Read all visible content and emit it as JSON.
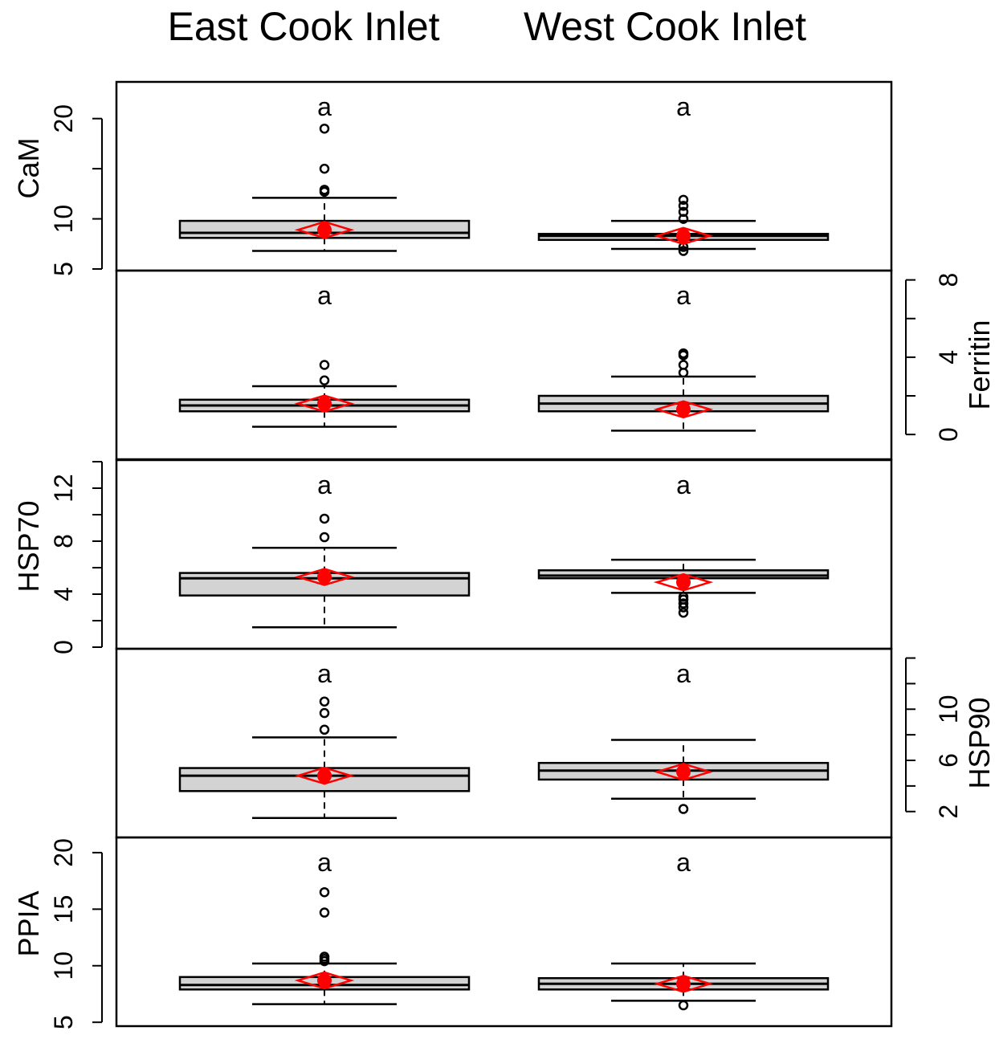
{
  "chart_data": {
    "type": "box",
    "groups": [
      "East Cook Inlet",
      "West Cook Inlet"
    ],
    "panels": [
      {
        "ylabel": "CaM",
        "axis_side": "left",
        "ticks": [
          5,
          10,
          20
        ],
        "tick_labels": [
          "5",
          "10",
          "20"
        ],
        "minor_ticks": [
          15
        ],
        "ylim": [
          5,
          23.5
        ],
        "letters": [
          "a",
          "a"
        ],
        "boxes": [
          {
            "lower_whisker": 6.8,
            "q1": 8.1,
            "median": 8.6,
            "q3": 9.8,
            "upper_whisker": 12.1,
            "mean": 8.9,
            "outliers": [
              12.7,
              12.9,
              15.0,
              19.0
            ]
          },
          {
            "lower_whisker": 7.0,
            "q1": 7.9,
            "median": 8.3,
            "q3": 8.5,
            "upper_whisker": 9.8,
            "mean": 8.3,
            "outliers": [
              6.8,
              7.2,
              10.0,
              10.7,
              11.3,
              11.9
            ]
          }
        ]
      },
      {
        "ylabel": "Ferritin",
        "axis_side": "right",
        "ticks": [
          0,
          4,
          8
        ],
        "tick_labels": [
          "0",
          "4",
          "8"
        ],
        "minor_ticks": [
          2,
          6
        ],
        "ylim": [
          -1.2,
          8.4
        ],
        "letters": [
          "a",
          "a"
        ],
        "boxes": [
          {
            "lower_whisker": 0.4,
            "q1": 1.2,
            "median": 1.5,
            "q3": 1.8,
            "upper_whisker": 2.5,
            "mean": 1.6,
            "outliers": [
              2.8,
              3.6
            ]
          },
          {
            "lower_whisker": 0.2,
            "q1": 1.2,
            "median": 1.6,
            "q3": 2.0,
            "upper_whisker": 3.0,
            "mean": 1.3,
            "outliers": [
              3.2,
              3.6,
              4.1,
              4.2
            ]
          }
        ]
      },
      {
        "ylabel": "HSP70",
        "axis_side": "left",
        "ticks": [
          0,
          4,
          8,
          12
        ],
        "tick_labels": [
          "0",
          "4",
          "8",
          "12"
        ],
        "minor_ticks": [
          2,
          6,
          10,
          14
        ],
        "ylim": [
          0,
          14
        ],
        "letters": [
          "a",
          "a"
        ],
        "boxes": [
          {
            "lower_whisker": 1.5,
            "q1": 3.9,
            "median": 5.2,
            "q3": 5.6,
            "upper_whisker": 7.5,
            "mean": 5.3,
            "outliers": [
              8.3,
              9.7
            ]
          },
          {
            "lower_whisker": 4.1,
            "q1": 5.2,
            "median": 5.4,
            "q3": 5.8,
            "upper_whisker": 6.6,
            "mean": 4.9,
            "outliers": [
              2.6,
              3.0,
              3.3,
              3.6,
              3.8
            ]
          }
        ]
      },
      {
        "ylabel": "HSP90",
        "axis_side": "right",
        "ticks": [
          2,
          6,
          10
        ],
        "tick_labels": [
          "2",
          "6",
          "10"
        ],
        "minor_ticks": [
          4,
          8,
          12,
          14
        ],
        "ylim": [
          0.1,
          14.6
        ],
        "letters": [
          "a",
          "a"
        ],
        "boxes": [
          {
            "lower_whisker": 1.5,
            "q1": 3.6,
            "median": 4.8,
            "q3": 5.4,
            "upper_whisker": 7.8,
            "mean": 4.8,
            "outliers": [
              8.4,
              9.7,
              10.6
            ]
          },
          {
            "lower_whisker": 3.0,
            "q1": 4.5,
            "median": 5.2,
            "q3": 5.8,
            "upper_whisker": 7.6,
            "mean": 5.1,
            "outliers": [
              2.2
            ]
          }
        ]
      },
      {
        "ylabel": "PPIA",
        "axis_side": "left",
        "ticks": [
          5,
          10,
          15,
          20
        ],
        "tick_labels": [
          "5",
          "10",
          "15",
          "20"
        ],
        "minor_ticks": [],
        "ylim": [
          4.8,
          21.2
        ],
        "letters": [
          "a",
          "a"
        ],
        "boxes": [
          {
            "lower_whisker": 6.6,
            "q1": 7.9,
            "median": 8.3,
            "q3": 9.0,
            "upper_whisker": 10.2,
            "mean": 8.7,
            "outliers": [
              10.4,
              10.6,
              10.8,
              14.7,
              16.5
            ]
          },
          {
            "lower_whisker": 6.9,
            "q1": 7.9,
            "median": 8.4,
            "q3": 8.9,
            "upper_whisker": 10.2,
            "mean": 8.4,
            "outliers": [
              6.5
            ]
          }
        ]
      }
    ],
    "mean_color": "#ff0000",
    "box_fill": "#d3d3d3"
  }
}
